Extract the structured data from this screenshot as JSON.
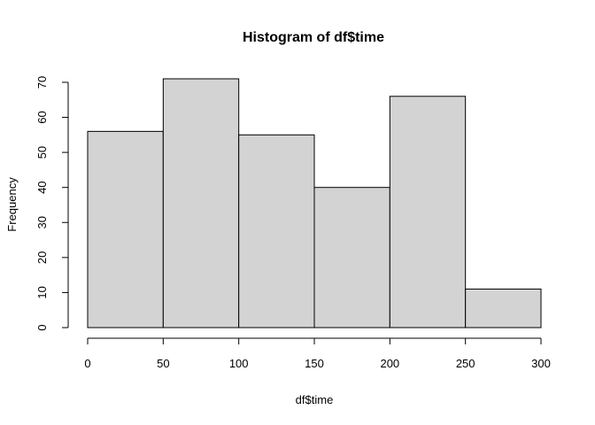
{
  "chart_data": {
    "type": "bar",
    "title": "Histogram of df$time",
    "xlabel": "df$time",
    "ylabel": "Frequency",
    "bins": [
      {
        "from": 0,
        "to": 50,
        "count": 56
      },
      {
        "from": 50,
        "to": 100,
        "count": 71
      },
      {
        "from": 100,
        "to": 150,
        "count": 55
      },
      {
        "from": 150,
        "to": 200,
        "count": 40
      },
      {
        "from": 200,
        "to": 250,
        "count": 66
      },
      {
        "from": 250,
        "to": 300,
        "count": 11
      }
    ],
    "xlim": [
      0,
      300
    ],
    "ylim": [
      0,
      71
    ],
    "x_ticks": [
      "0",
      "50",
      "100",
      "150",
      "200",
      "250",
      "300"
    ],
    "y_ticks": [
      "0",
      "10",
      "20",
      "30",
      "40",
      "50",
      "60",
      "70"
    ],
    "grid": false,
    "bar_fill": "#d3d3d3",
    "bar_stroke": "#000000"
  }
}
